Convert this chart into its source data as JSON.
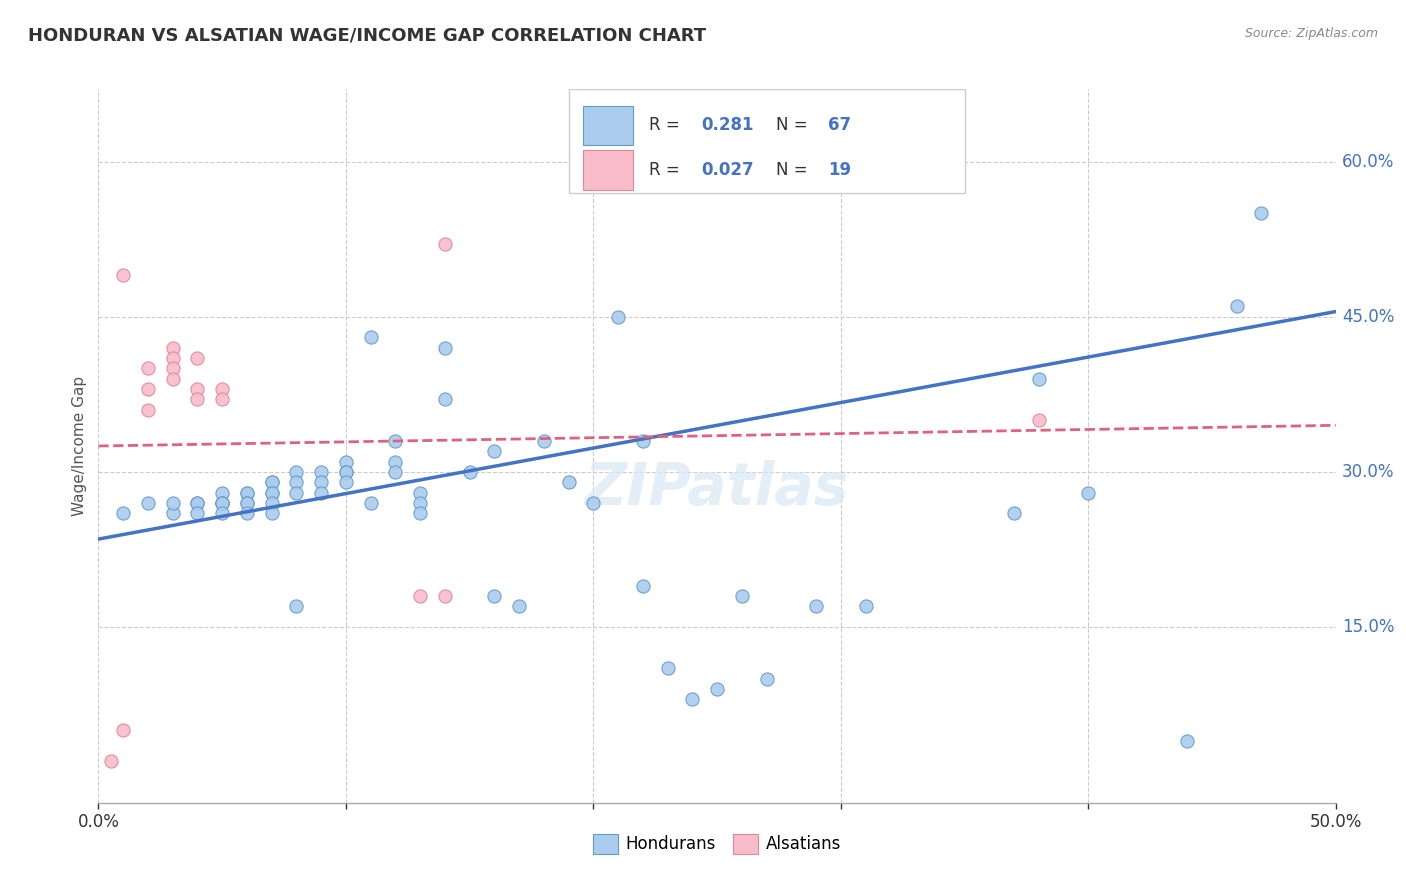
{
  "title": "HONDURAN VS ALSATIAN WAGE/INCOME GAP CORRELATION CHART",
  "source": "Source: ZipAtlas.com",
  "ylabel": "Wage/Income Gap",
  "xlim": [
    0.0,
    0.5
  ],
  "ylim": [
    -0.02,
    0.67
  ],
  "xticks": [
    0.0,
    0.1,
    0.2,
    0.3,
    0.4,
    0.5
  ],
  "xticklabels_show": [
    "0.0%",
    "",
    "",
    "",
    "",
    "50.0%"
  ],
  "yticks_right": [
    0.15,
    0.3,
    0.45,
    0.6
  ],
  "ytick_right_labels": [
    "15.0%",
    "30.0%",
    "45.0%",
    "60.0%"
  ],
  "watermark": "ZIPatlas",
  "blue_color": "#aaccee",
  "blue_edge_color": "#6699cc",
  "blue_line_color": "#4472c4",
  "pink_color": "#f9bccb",
  "pink_edge_color": "#e08898",
  "pink_line_color": "#e06080",
  "blue_scatter_x": [
    0.01,
    0.02,
    0.03,
    0.03,
    0.04,
    0.04,
    0.04,
    0.05,
    0.05,
    0.05,
    0.05,
    0.05,
    0.06,
    0.06,
    0.06,
    0.06,
    0.06,
    0.07,
    0.07,
    0.07,
    0.07,
    0.07,
    0.07,
    0.08,
    0.08,
    0.08,
    0.08,
    0.09,
    0.09,
    0.09,
    0.1,
    0.1,
    0.1,
    0.1,
    0.11,
    0.11,
    0.12,
    0.12,
    0.12,
    0.13,
    0.13,
    0.13,
    0.14,
    0.14,
    0.15,
    0.16,
    0.16,
    0.17,
    0.18,
    0.19,
    0.2,
    0.21,
    0.22,
    0.22,
    0.23,
    0.24,
    0.25,
    0.26,
    0.27,
    0.29,
    0.31,
    0.37,
    0.38,
    0.4,
    0.44,
    0.46,
    0.47
  ],
  "blue_scatter_y": [
    0.26,
    0.27,
    0.26,
    0.27,
    0.27,
    0.27,
    0.26,
    0.28,
    0.27,
    0.27,
    0.27,
    0.26,
    0.28,
    0.28,
    0.27,
    0.27,
    0.26,
    0.29,
    0.29,
    0.28,
    0.28,
    0.27,
    0.26,
    0.3,
    0.29,
    0.28,
    0.17,
    0.3,
    0.29,
    0.28,
    0.31,
    0.3,
    0.3,
    0.29,
    0.43,
    0.27,
    0.33,
    0.31,
    0.3,
    0.28,
    0.27,
    0.26,
    0.42,
    0.37,
    0.3,
    0.32,
    0.18,
    0.17,
    0.33,
    0.29,
    0.27,
    0.45,
    0.33,
    0.19,
    0.11,
    0.08,
    0.09,
    0.18,
    0.1,
    0.17,
    0.17,
    0.26,
    0.39,
    0.28,
    0.04,
    0.46,
    0.55
  ],
  "pink_scatter_x": [
    0.005,
    0.01,
    0.01,
    0.02,
    0.02,
    0.02,
    0.03,
    0.03,
    0.03,
    0.03,
    0.04,
    0.04,
    0.04,
    0.05,
    0.05,
    0.13,
    0.14,
    0.14,
    0.38
  ],
  "pink_scatter_y": [
    0.02,
    0.05,
    0.49,
    0.36,
    0.38,
    0.4,
    0.42,
    0.41,
    0.4,
    0.39,
    0.41,
    0.38,
    0.37,
    0.38,
    0.37,
    0.18,
    0.18,
    0.52,
    0.35
  ],
  "blue_trend_x": [
    0.0,
    0.5
  ],
  "blue_trend_y": [
    0.235,
    0.455
  ],
  "pink_trend_x": [
    0.0,
    0.5
  ],
  "pink_trend_y": [
    0.325,
    0.345
  ],
  "background_color": "#ffffff",
  "grid_color": "#cccccc",
  "legend_r1": "R = ",
  "legend_v1": "0.281",
  "legend_n1": "N = ",
  "legend_nv1": "67",
  "legend_r2": "R = ",
  "legend_v2": "0.027",
  "legend_n2": "N = ",
  "legend_nv2": "19"
}
